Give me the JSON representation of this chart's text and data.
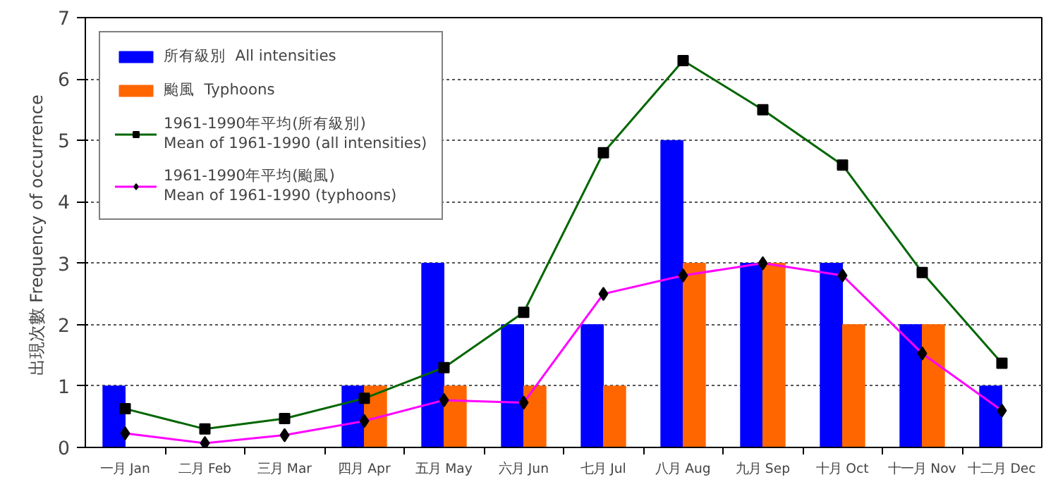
{
  "chart_data": {
    "type": "bar",
    "ylabel": "出現次數  Frequency of occurrence",
    "categories": [
      "一月 Jan",
      "二月 Feb",
      "三月 Mar",
      "四月 Apr",
      "五月 May",
      "六月 Jun",
      "七月 Jul",
      "八月 Aug",
      "九月 Sep",
      "十月 Oct",
      "十一月 Nov",
      "十二月 Dec"
    ],
    "series": [
      {
        "name": "所有級別  All intensities",
        "color": "#0000ff",
        "values": [
          1,
          0,
          0,
          1,
          3,
          2,
          2,
          5,
          3,
          3,
          2,
          1
        ]
      },
      {
        "name": "颱風  Typhoons",
        "color": "#ff6600",
        "values": [
          0,
          0,
          0,
          1,
          1,
          1,
          1,
          3,
          3,
          2,
          2,
          0
        ]
      },
      {
        "name": "1961-1990年平均(所有級別)\nMean of 1961-1990 (all intensities)",
        "type": "line",
        "marker": "square",
        "color": "#006600",
        "values": [
          0.63,
          0.3,
          0.47,
          0.8,
          1.3,
          2.2,
          4.8,
          6.3,
          5.5,
          4.6,
          2.85,
          1.37
        ]
      },
      {
        "name": "1961-1990年平均(颱風)\nMean of 1961-1990 (typhoons)",
        "type": "line",
        "marker": "diamond",
        "color": "#ff00ff",
        "values": [
          0.23,
          0.07,
          0.2,
          0.43,
          0.77,
          0.73,
          2.5,
          2.8,
          3.0,
          2.8,
          1.53,
          0.6
        ]
      }
    ],
    "ylim": [
      0,
      7
    ],
    "yticks": [
      0,
      1,
      2,
      3,
      4,
      5,
      6,
      7
    ],
    "grid": "y",
    "legend": "top left"
  }
}
